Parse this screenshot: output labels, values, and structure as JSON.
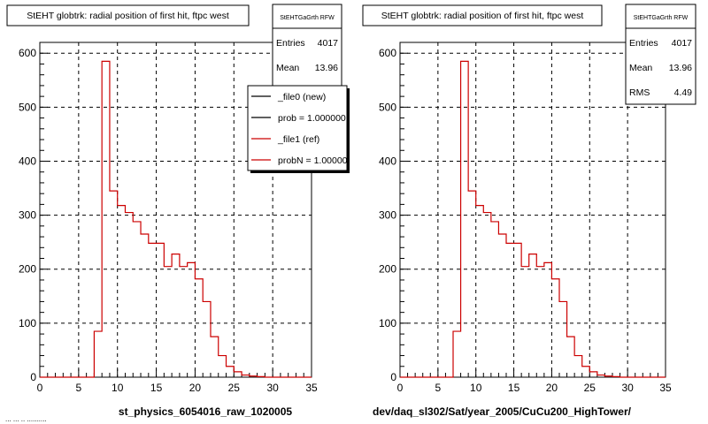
{
  "footer_text": "... ...  .. ..........",
  "chart_data": [
    {
      "type": "histogram",
      "title": "StEHT globtrk: radial position of first hit, ftpc west",
      "xlabel": "st_physics_6054016_raw_1020005",
      "xlim": [
        0,
        35
      ],
      "ylim": [
        0,
        620
      ],
      "x_ticks": [
        "0",
        "5",
        "10",
        "15",
        "20",
        "25",
        "30",
        "35"
      ],
      "y_ticks": [
        "0",
        "100",
        "200",
        "300",
        "400",
        "500",
        "600"
      ],
      "grid": true,
      "bin_width": 1,
      "series": [
        {
          "name": "_file1 (ref)",
          "color": "#cc0000",
          "x": [
            7,
            8,
            9,
            10,
            11,
            12,
            13,
            14,
            15,
            16,
            17,
            18,
            19,
            20,
            21,
            22,
            23,
            24,
            25,
            26,
            27,
            28
          ],
          "values": [
            85,
            585,
            345,
            318,
            305,
            288,
            265,
            248,
            248,
            205,
            228,
            205,
            212,
            182,
            140,
            75,
            40,
            20,
            10,
            4,
            2,
            1
          ]
        }
      ],
      "stats": {
        "title": "StEHTGaGrth RFW",
        "rows": [
          {
            "label": "Entries",
            "value": "4017"
          },
          {
            "label": "Mean",
            "value": "13.96"
          }
        ]
      },
      "legend": {
        "position": "top-right",
        "entries": [
          {
            "label": "_file0 (new)",
            "color": "#000000"
          },
          {
            "label": "prob = 1.000000",
            "color": "#000000"
          },
          {
            "label": "_file1 (ref)",
            "color": "#cc0000"
          },
          {
            "label": "probN = 1.000000",
            "color": "#cc0000"
          }
        ]
      }
    },
    {
      "type": "histogram",
      "title": "StEHT globtrk: radial position of first hit, ftpc west",
      "xlabel": "dev/daq_sl302/Sat/year_2005/CuCu200_HighTower/",
      "xlim": [
        0,
        35
      ],
      "ylim": [
        0,
        620
      ],
      "x_ticks": [
        "0",
        "5",
        "10",
        "15",
        "20",
        "25",
        "30",
        "35"
      ],
      "y_ticks": [
        "0",
        "100",
        "200",
        "300",
        "400",
        "500",
        "600"
      ],
      "grid": true,
      "bin_width": 1,
      "series": [
        {
          "color": "#cc0000",
          "x": [
            7,
            8,
            9,
            10,
            11,
            12,
            13,
            14,
            15,
            16,
            17,
            18,
            19,
            20,
            21,
            22,
            23,
            24,
            25,
            26,
            27,
            28
          ],
          "values": [
            85,
            585,
            345,
            318,
            305,
            288,
            265,
            248,
            248,
            205,
            228,
            205,
            212,
            182,
            140,
            75,
            40,
            20,
            10,
            4,
            2,
            1
          ]
        }
      ],
      "stats": {
        "title": "StEHTGaGrth RFW",
        "rows": [
          {
            "label": "Entries",
            "value": "4017"
          },
          {
            "label": "Mean",
            "value": "13.96"
          },
          {
            "label": "RMS",
            "value": "4.49"
          }
        ]
      }
    }
  ]
}
